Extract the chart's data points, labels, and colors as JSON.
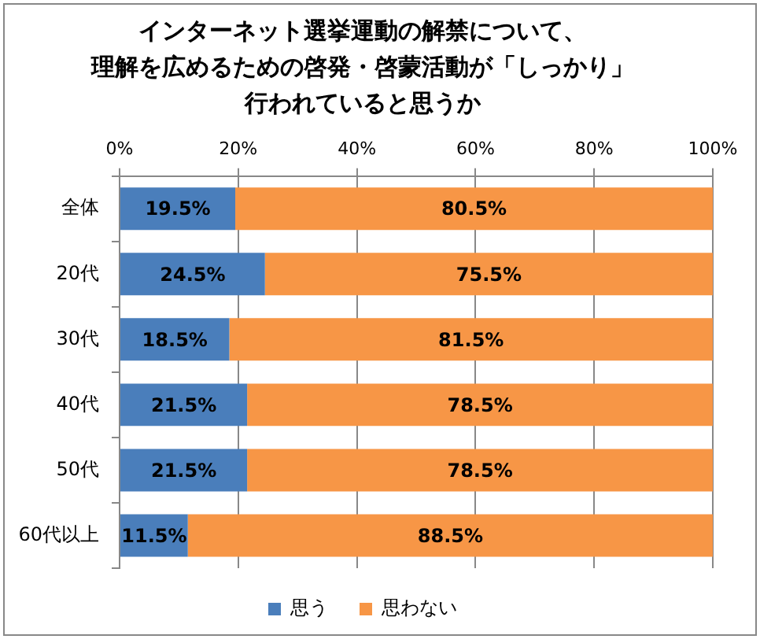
{
  "chart_data": {
    "type": "bar",
    "orientation": "horizontal",
    "stacked": true,
    "title": "インターネット選挙運動の解禁について、理解を広めるための啓発・啓蒙活動が「しっかり」行われていると思うか",
    "categories": [
      "全体",
      "20代",
      "30代",
      "40代",
      "50代",
      "60代以上"
    ],
    "series": [
      {
        "name": "思う",
        "color": "#4a7ebb",
        "values": [
          19.5,
          24.5,
          18.5,
          21.5,
          21.5,
          11.5
        ],
        "value_labels": [
          "19.5%",
          "24.5%",
          "18.5%",
          "21.5%",
          "21.5%",
          "11.5%"
        ]
      },
      {
        "name": "思わない",
        "color": "#f79646",
        "values": [
          80.5,
          75.5,
          81.5,
          78.5,
          78.5,
          88.5
        ],
        "value_labels": [
          "80.5%",
          "75.5%",
          "81.5%",
          "78.5%",
          "78.5%",
          "88.5%"
        ]
      }
    ],
    "xlim": [
      0,
      100
    ],
    "xticks": [
      {
        "value": 0,
        "label": "0%"
      },
      {
        "value": 20,
        "label": "20%"
      },
      {
        "value": 40,
        "label": "40%"
      },
      {
        "value": 60,
        "label": "60%"
      },
      {
        "value": 80,
        "label": "80%"
      },
      {
        "value": 100,
        "label": "100%"
      }
    ],
    "grid": "x",
    "legend": "bottom"
  }
}
